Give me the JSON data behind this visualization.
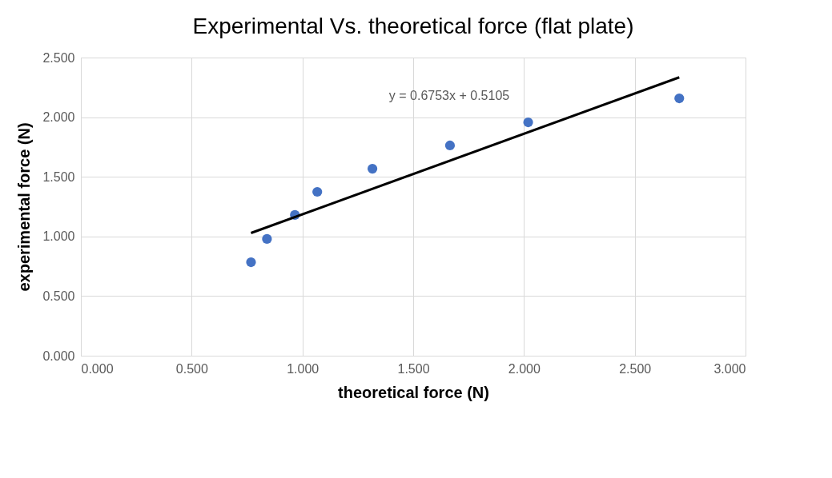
{
  "chart_data": {
    "type": "scatter",
    "title": "Experimental Vs. theoretical force (flat plate)",
    "xlabel": "theoretical force (N)",
    "ylabel": "experimental force (N)",
    "series": [
      {
        "marker": "circle",
        "color": "#4472c4",
        "x": [
          0.768,
          0.84,
          0.966,
          1.067,
          1.316,
          1.666,
          2.019,
          2.701
        ],
        "values": [
          0.784,
          0.979,
          1.18,
          1.374,
          1.568,
          1.763,
          1.957,
          2.158
        ]
      },
      {
        "type": "line",
        "marker": "none",
        "color": "#000000",
        "x": [
          0.768,
          2.701
        ],
        "values": [
          1.029,
          2.334
        ]
      }
    ],
    "annotations": [
      "y = 0.6753x + 0.5105"
    ],
    "xlim": [
      0,
      3
    ],
    "ylim": [
      0,
      2.5
    ],
    "xticks": [
      {
        "value": 0,
        "label": "0.000"
      },
      {
        "value": 0.5,
        "label": "0.500"
      },
      {
        "value": 1,
        "label": "1.000"
      },
      {
        "value": 1.5,
        "label": "1.500"
      },
      {
        "value": 2,
        "label": "2.000"
      },
      {
        "value": 2.5,
        "label": "2.500"
      },
      {
        "value": 3,
        "label": "3.000"
      }
    ],
    "yticks": [
      {
        "value": 0,
        "label": "0.000"
      },
      {
        "value": 0.5,
        "label": "0.500"
      },
      {
        "value": 1,
        "label": "1.000"
      },
      {
        "value": 1.5,
        "label": "1.500"
      },
      {
        "value": 2,
        "label": "2.000"
      },
      {
        "value": 2.5,
        "label": "2.500"
      }
    ],
    "grid": true
  }
}
